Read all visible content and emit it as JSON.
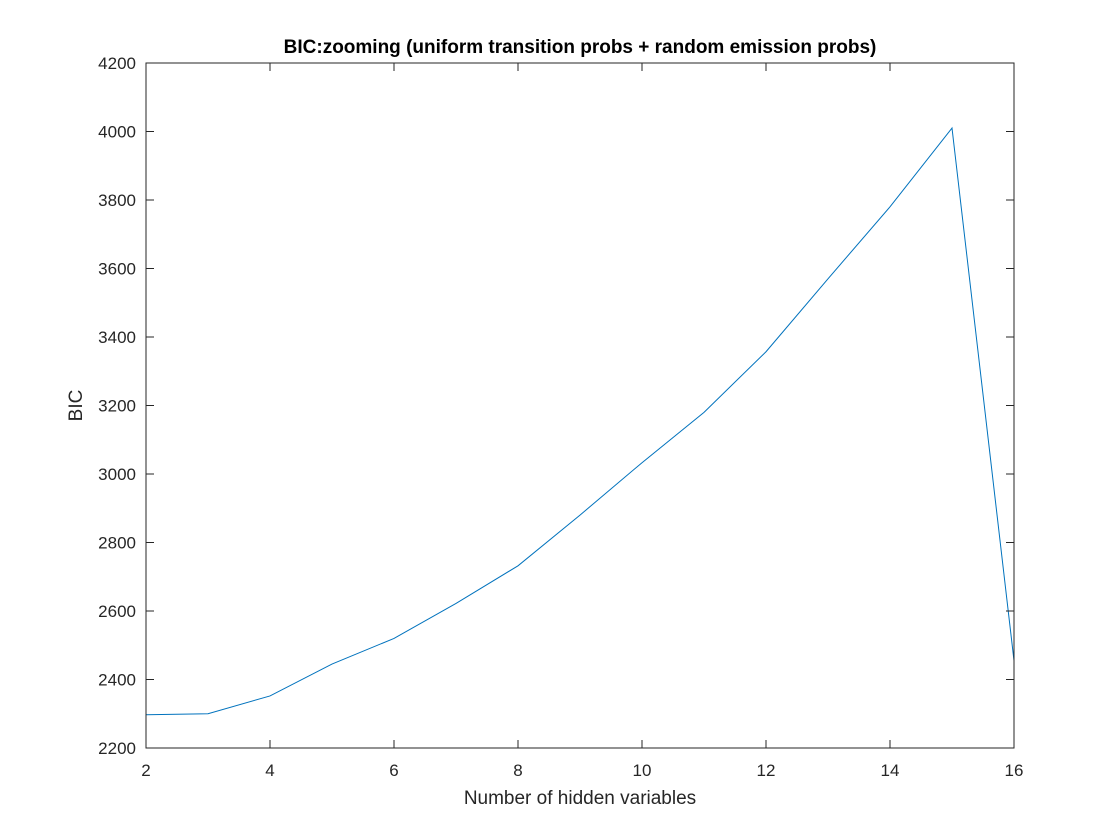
{
  "chart_data": {
    "type": "line",
    "title": "BIC:zooming  (uniform transition probs + random emission probs)",
    "xlabel": "Number of hidden variables",
    "ylabel": "BIC",
    "xlim": [
      2,
      16
    ],
    "ylim": [
      2200,
      4200
    ],
    "xticks": [
      2,
      4,
      6,
      8,
      10,
      12,
      14,
      16
    ],
    "yticks": [
      2200,
      2400,
      2600,
      2800,
      3000,
      3200,
      3400,
      3600,
      3800,
      4000,
      4200
    ],
    "grid": false,
    "series": [
      {
        "color": "#0072BD",
        "x": [
          2,
          3,
          4,
          5,
          6,
          7,
          8,
          9,
          10,
          11,
          12,
          13,
          14,
          15,
          16
        ],
        "y": [
          2297,
          2300,
          2352,
          2445,
          2520,
          2622,
          2732,
          2880,
          3033,
          3180,
          3357,
          3570,
          3780,
          4010,
          2455
        ]
      }
    ]
  }
}
